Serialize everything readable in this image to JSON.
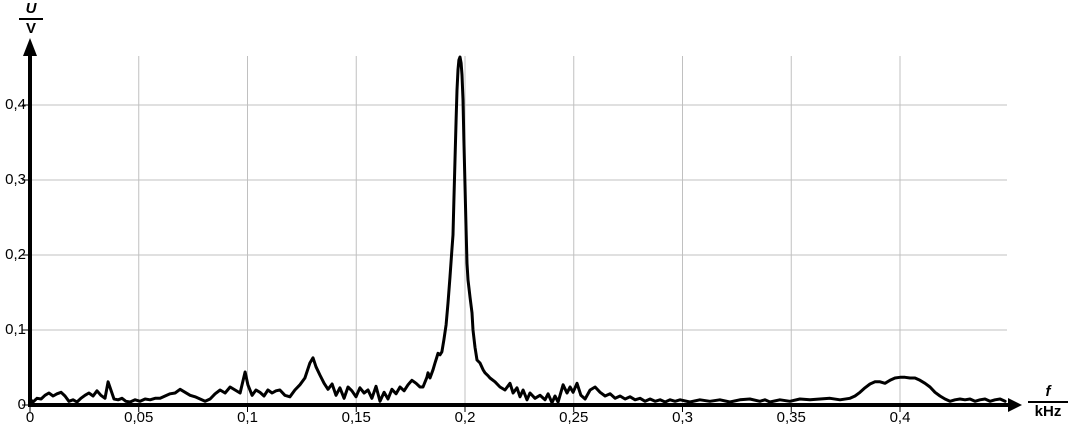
{
  "figure": {
    "background": "#ffffff",
    "grid_color": "#c0c0c0",
    "axis_color": "#000000",
    "curve_color": "#000000"
  },
  "chart_data": {
    "type": "line",
    "title": "",
    "ylabel_fraction": {
      "numerator": "U",
      "denominator": "V"
    },
    "xlabel_fraction": {
      "numerator": "f",
      "denominator": "kHz"
    },
    "xlim": [
      0,
      0.456
    ],
    "ylim": [
      0,
      0.47
    ],
    "grid": true,
    "legend": "none",
    "x_ticks": [
      {
        "v": 0.0,
        "label": "0"
      },
      {
        "v": 0.05,
        "label": "0,05"
      },
      {
        "v": 0.1,
        "label": "0,1"
      },
      {
        "v": 0.15,
        "label": "0,15"
      },
      {
        "v": 0.2,
        "label": "0,2"
      },
      {
        "v": 0.25,
        "label": "0,25"
      },
      {
        "v": 0.3,
        "label": "0,3"
      },
      {
        "v": 0.35,
        "label": "0,35"
      },
      {
        "v": 0.4,
        "label": "0,4"
      }
    ],
    "y_ticks": [
      {
        "v": 0.0,
        "label": "0"
      },
      {
        "v": 0.1,
        "label": "0,1"
      },
      {
        "v": 0.2,
        "label": "0,2"
      },
      {
        "v": 0.3,
        "label": "0,3"
      },
      {
        "v": 0.4,
        "label": "0,4"
      }
    ],
    "main_peak": {
      "f": 0.198,
      "U": 0.464
    },
    "secondary_peaks": [
      {
        "f": 0.13,
        "U": 0.063
      },
      {
        "f": 0.099,
        "U": 0.044
      },
      {
        "f": 0.405,
        "U": 0.037
      }
    ],
    "series": [
      {
        "name": "spectrum",
        "points": [
          [
            0,
            0.008
          ],
          [
            0.0014,
            0.004
          ],
          [
            0.0032,
            0.009
          ],
          [
            0.0051,
            0.008
          ],
          [
            0.0069,
            0.013
          ],
          [
            0.0087,
            0.016
          ],
          [
            0.0106,
            0.012
          ],
          [
            0.0124,
            0.015
          ],
          [
            0.0143,
            0.017
          ],
          [
            0.0161,
            0.012
          ],
          [
            0.0179,
            0.005
          ],
          [
            0.0198,
            0.007
          ],
          [
            0.0216,
            0.004
          ],
          [
            0.0234,
            0.009
          ],
          [
            0.0253,
            0.013
          ],
          [
            0.0271,
            0.016
          ],
          [
            0.029,
            0.012
          ],
          [
            0.0308,
            0.019
          ],
          [
            0.0326,
            0.013
          ],
          [
            0.0345,
            0.009
          ],
          [
            0.0359,
            0.031
          ],
          [
            0.0372,
            0.02
          ],
          [
            0.0386,
            0.008
          ],
          [
            0.0405,
            0.007
          ],
          [
            0.0423,
            0.009
          ],
          [
            0.0441,
            0.005
          ],
          [
            0.046,
            0.004
          ],
          [
            0.0483,
            0.007
          ],
          [
            0.0506,
            0.005
          ],
          [
            0.0529,
            0.008
          ],
          [
            0.0552,
            0.007
          ],
          [
            0.0575,
            0.009
          ],
          [
            0.0598,
            0.009
          ],
          [
            0.0621,
            0.012
          ],
          [
            0.0644,
            0.015
          ],
          [
            0.0667,
            0.016
          ],
          [
            0.069,
            0.021
          ],
          [
            0.0713,
            0.017
          ],
          [
            0.0736,
            0.013
          ],
          [
            0.0759,
            0.011
          ],
          [
            0.0782,
            0.008
          ],
          [
            0.0805,
            0.005
          ],
          [
            0.0828,
            0.008
          ],
          [
            0.0851,
            0.015
          ],
          [
            0.0874,
            0.02
          ],
          [
            0.0897,
            0.016
          ],
          [
            0.092,
            0.024
          ],
          [
            0.0943,
            0.02
          ],
          [
            0.0966,
            0.016
          ],
          [
            0.0989,
            0.044
          ],
          [
            0.1002,
            0.027
          ],
          [
            0.1021,
            0.013
          ],
          [
            0.1039,
            0.02
          ],
          [
            0.1057,
            0.017
          ],
          [
            0.1076,
            0.012
          ],
          [
            0.1094,
            0.02
          ],
          [
            0.1113,
            0.016
          ],
          [
            0.1131,
            0.019
          ],
          [
            0.1149,
            0.02
          ],
          [
            0.1172,
            0.013
          ],
          [
            0.1195,
            0.011
          ],
          [
            0.1218,
            0.02
          ],
          [
            0.1241,
            0.027
          ],
          [
            0.1264,
            0.036
          ],
          [
            0.1287,
            0.056
          ],
          [
            0.1301,
            0.063
          ],
          [
            0.1315,
            0.051
          ],
          [
            0.1333,
            0.04
          ],
          [
            0.1352,
            0.029
          ],
          [
            0.137,
            0.021
          ],
          [
            0.1389,
            0.028
          ],
          [
            0.1407,
            0.013
          ],
          [
            0.1425,
            0.023
          ],
          [
            0.1444,
            0.009
          ],
          [
            0.1462,
            0.024
          ],
          [
            0.148,
            0.019
          ],
          [
            0.1499,
            0.011
          ],
          [
            0.1517,
            0.023
          ],
          [
            0.1536,
            0.016
          ],
          [
            0.1554,
            0.02
          ],
          [
            0.1572,
            0.009
          ],
          [
            0.1591,
            0.025
          ],
          [
            0.1609,
            0.005
          ],
          [
            0.1628,
            0.017
          ],
          [
            0.1646,
            0.008
          ],
          [
            0.1664,
            0.021
          ],
          [
            0.1683,
            0.015
          ],
          [
            0.1701,
            0.024
          ],
          [
            0.172,
            0.019
          ],
          [
            0.1738,
            0.027
          ],
          [
            0.1756,
            0.033
          ],
          [
            0.1775,
            0.029
          ],
          [
            0.1793,
            0.024
          ],
          [
            0.1807,
            0.024
          ],
          [
            0.1825,
            0.037
          ],
          [
            0.183,
            0.043
          ],
          [
            0.1839,
            0.036
          ],
          [
            0.1853,
            0.047
          ],
          [
            0.1862,
            0.056
          ],
          [
            0.1871,
            0.064
          ],
          [
            0.1876,
            0.069
          ],
          [
            0.1885,
            0.067
          ],
          [
            0.1894,
            0.071
          ],
          [
            0.1903,
            0.087
          ],
          [
            0.1913,
            0.107
          ],
          [
            0.1922,
            0.136
          ],
          [
            0.1931,
            0.171
          ],
          [
            0.194,
            0.207
          ],
          [
            0.1945,
            0.227
          ],
          [
            0.1949,
            0.273
          ],
          [
            0.1954,
            0.327
          ],
          [
            0.1959,
            0.38
          ],
          [
            0.1963,
            0.42
          ],
          [
            0.1968,
            0.447
          ],
          [
            0.1972,
            0.46
          ],
          [
            0.1977,
            0.464
          ],
          [
            0.1982,
            0.456
          ],
          [
            0.1986,
            0.44
          ],
          [
            0.1991,
            0.407
          ],
          [
            0.1995,
            0.353
          ],
          [
            0.2,
            0.293
          ],
          [
            0.2005,
            0.233
          ],
          [
            0.2009,
            0.189
          ],
          [
            0.2014,
            0.167
          ],
          [
            0.2023,
            0.144
          ],
          [
            0.2032,
            0.123
          ],
          [
            0.2037,
            0.1
          ],
          [
            0.2046,
            0.077
          ],
          [
            0.2055,
            0.06
          ],
          [
            0.2069,
            0.056
          ],
          [
            0.2083,
            0.047
          ],
          [
            0.2092,
            0.043
          ],
          [
            0.2106,
            0.039
          ],
          [
            0.2115,
            0.036
          ],
          [
            0.2138,
            0.031
          ],
          [
            0.2161,
            0.024
          ],
          [
            0.2184,
            0.02
          ],
          [
            0.2207,
            0.029
          ],
          [
            0.2221,
            0.016
          ],
          [
            0.2239,
            0.023
          ],
          [
            0.2253,
            0.011
          ],
          [
            0.2267,
            0.02
          ],
          [
            0.2285,
            0.007
          ],
          [
            0.2299,
            0.016
          ],
          [
            0.2322,
            0.009
          ],
          [
            0.2345,
            0.013
          ],
          [
            0.2368,
            0.007
          ],
          [
            0.2382,
            0.015
          ],
          [
            0.24,
            0.003
          ],
          [
            0.2414,
            0.012
          ],
          [
            0.2428,
            0.004
          ],
          [
            0.2451,
            0.027
          ],
          [
            0.2469,
            0.016
          ],
          [
            0.2483,
            0.024
          ],
          [
            0.2497,
            0.017
          ],
          [
            0.2515,
            0.029
          ],
          [
            0.2533,
            0.013
          ],
          [
            0.2552,
            0.008
          ],
          [
            0.2575,
            0.02
          ],
          [
            0.2598,
            0.024
          ],
          [
            0.2621,
            0.017
          ],
          [
            0.2644,
            0.012
          ],
          [
            0.2667,
            0.015
          ],
          [
            0.269,
            0.009
          ],
          [
            0.2713,
            0.012
          ],
          [
            0.2736,
            0.008
          ],
          [
            0.2759,
            0.011
          ],
          [
            0.2782,
            0.007
          ],
          [
            0.2805,
            0.009
          ],
          [
            0.2828,
            0.005
          ],
          [
            0.2851,
            0.008
          ],
          [
            0.2874,
            0.005
          ],
          [
            0.2897,
            0.007
          ],
          [
            0.292,
            0.004
          ],
          [
            0.2943,
            0.007
          ],
          [
            0.2966,
            0.005
          ],
          [
            0.2989,
            0.007
          ],
          [
            0.3034,
            0.004
          ],
          [
            0.308,
            0.007
          ],
          [
            0.3126,
            0.005
          ],
          [
            0.3172,
            0.007
          ],
          [
            0.3218,
            0.004
          ],
          [
            0.3264,
            0.007
          ],
          [
            0.331,
            0.008
          ],
          [
            0.3356,
            0.005
          ],
          [
            0.3379,
            0.007
          ],
          [
            0.3402,
            0.004
          ],
          [
            0.3448,
            0.007
          ],
          [
            0.3494,
            0.005
          ],
          [
            0.354,
            0.008
          ],
          [
            0.3586,
            0.007
          ],
          [
            0.3632,
            0.008
          ],
          [
            0.3678,
            0.009
          ],
          [
            0.3724,
            0.007
          ],
          [
            0.377,
            0.009
          ],
          [
            0.3793,
            0.012
          ],
          [
            0.3816,
            0.017
          ],
          [
            0.3839,
            0.023
          ],
          [
            0.3862,
            0.028
          ],
          [
            0.3885,
            0.031
          ],
          [
            0.3908,
            0.031
          ],
          [
            0.3931,
            0.029
          ],
          [
            0.3954,
            0.033
          ],
          [
            0.3977,
            0.036
          ],
          [
            0.4,
            0.037
          ],
          [
            0.4023,
            0.037
          ],
          [
            0.4046,
            0.036
          ],
          [
            0.4069,
            0.036
          ],
          [
            0.4092,
            0.033
          ],
          [
            0.4115,
            0.029
          ],
          [
            0.4138,
            0.024
          ],
          [
            0.4161,
            0.017
          ],
          [
            0.4184,
            0.012
          ],
          [
            0.4207,
            0.008
          ],
          [
            0.423,
            0.005
          ],
          [
            0.4253,
            0.007
          ],
          [
            0.4276,
            0.008
          ],
          [
            0.4299,
            0.007
          ],
          [
            0.4322,
            0.008
          ],
          [
            0.4345,
            0.005
          ],
          [
            0.4368,
            0.007
          ],
          [
            0.4391,
            0.008
          ],
          [
            0.4414,
            0.005
          ],
          [
            0.4437,
            0.007
          ],
          [
            0.446,
            0.008
          ],
          [
            0.4483,
            0.005
          ]
        ]
      }
    ]
  }
}
